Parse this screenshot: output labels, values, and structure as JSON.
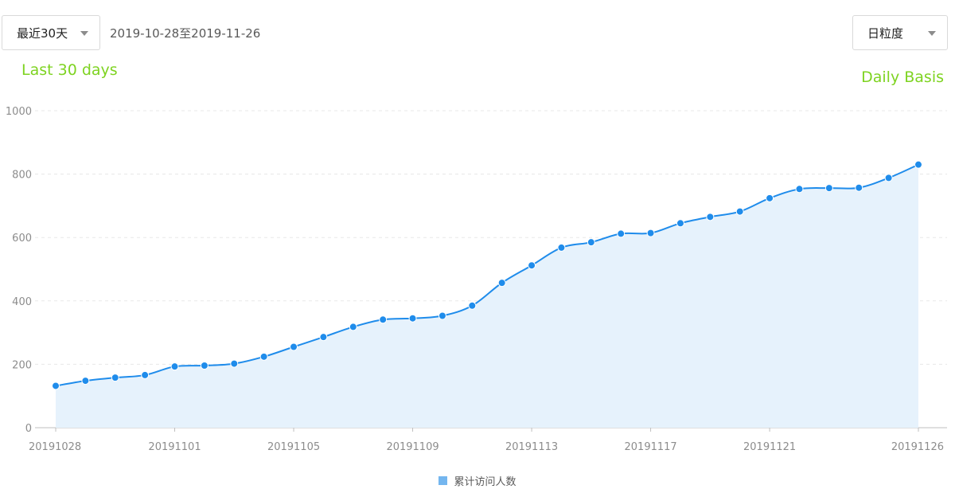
{
  "toolbar": {
    "range_select": "最近30天",
    "date_range": "2019-10-28至2019-11-26",
    "granularity_select": "日粒度"
  },
  "annotations": {
    "left": "Last 30 days",
    "right": "Daily Basis"
  },
  "colors": {
    "line": "#1f8ceb",
    "area": "#e6f2fc",
    "annotation": "#7ed321",
    "legend_swatch": "#74b6ef"
  },
  "chart_data": {
    "type": "area",
    "x": [
      "20191028",
      "20191029",
      "20191030",
      "20191031",
      "20191101",
      "20191102",
      "20191103",
      "20191104",
      "20191105",
      "20191106",
      "20191107",
      "20191108",
      "20191109",
      "20191110",
      "20191111",
      "20191112",
      "20191113",
      "20191114",
      "20191115",
      "20191116",
      "20191117",
      "20191118",
      "20191119",
      "20191120",
      "20191121",
      "20191122",
      "20191123",
      "20191124",
      "20191125",
      "20191126"
    ],
    "x_tick_labels": [
      "20191028",
      "20191101",
      "20191105",
      "20191109",
      "20191113",
      "20191117",
      "20191121",
      "20191126"
    ],
    "series": [
      {
        "name": "累计访问人数",
        "values": [
          132,
          148,
          158,
          166,
          193,
          196,
          202,
          224,
          255,
          286,
          318,
          341,
          345,
          353,
          385,
          457,
          512,
          568,
          585,
          612,
          614,
          645,
          665,
          682,
          724,
          753,
          756,
          757,
          788,
          830
        ]
      }
    ],
    "ylim": [
      0,
      1000
    ],
    "y_ticks": [
      "0",
      "200",
      "400",
      "600",
      "800",
      "1000"
    ],
    "grid": "horizontal dashed",
    "legend": "bottom-center",
    "smooth": true
  }
}
